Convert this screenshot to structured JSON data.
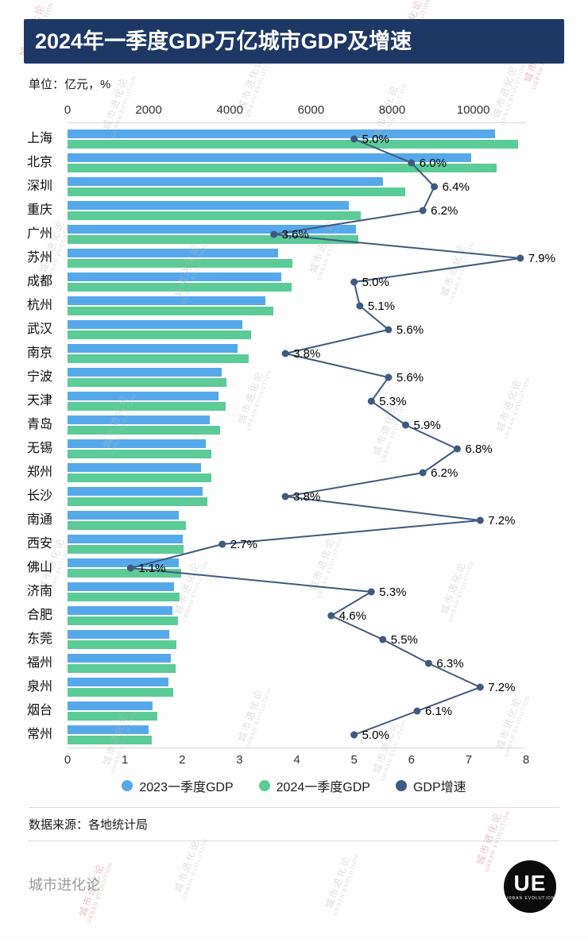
{
  "header": {
    "title": "2024年一季度GDP万亿城市GDP及增速",
    "unit": "单位：亿元，%"
  },
  "chart_data": {
    "type": "bar",
    "orientation": "horizontal",
    "title": "2024年一季度GDP万亿城市GDP及增速",
    "unit": "亿元，%",
    "grid": false,
    "legend_position": "bottom",
    "categories": [
      "上海",
      "北京",
      "深圳",
      "重庆",
      "广州",
      "苏州",
      "成都",
      "杭州",
      "武汉",
      "南京",
      "宁波",
      "天津",
      "青岛",
      "无锡",
      "郑州",
      "长沙",
      "南通",
      "西安",
      "佛山",
      "济南",
      "合肥",
      "东莞",
      "福州",
      "泉州",
      "烟台",
      "常州"
    ],
    "series": [
      {
        "name": "2023一季度GDP",
        "color": "#55a9ea",
        "values": [
          10536,
          9948,
          7772,
          6933,
          7101,
          5187,
          5267,
          4874,
          4318,
          4184,
          3802,
          3715,
          3504,
          3401,
          3284,
          3321,
          2733,
          2834,
          2745,
          2620,
          2590,
          2514,
          2550,
          2490,
          2087,
          2000
        ]
      },
      {
        "name": "2024一季度GDP",
        "color": "#5bcb97",
        "values": [
          11099,
          10581,
          8315,
          7232,
          7161,
          5549,
          5518,
          5063,
          4533,
          4457,
          3908,
          3896,
          3769,
          3553,
          3538,
          3448,
          2920,
          2865,
          2792,
          2758,
          2727,
          2675,
          2656,
          2597,
          2214,
          2080
        ]
      }
    ],
    "line_series": {
      "name": "GDP增速",
      "color": "#3f5a82",
      "values": [
        5.0,
        6.0,
        6.4,
        6.2,
        3.6,
        7.9,
        5.0,
        5.1,
        5.6,
        3.8,
        5.6,
        5.3,
        5.9,
        6.8,
        6.2,
        3.8,
        7.2,
        2.7,
        1.1,
        5.3,
        4.6,
        5.5,
        6.3,
        7.2,
        6.1,
        5.0
      ],
      "labels": [
        "5.0%",
        "6.0%",
        "6.4%",
        "6.2%",
        "3.6%",
        "7.9%",
        "5.0%",
        "5.1%",
        "5.6%",
        "3.8%",
        "5.6%",
        "5.3%",
        "5.9%",
        "6.8%",
        "6.2%",
        "3.8%",
        "7.2%",
        "2.7%",
        "1.1%",
        "5.3%",
        "4.6%",
        "5.5%",
        "6.3%",
        "7.2%",
        "6.1%",
        "5.0%"
      ]
    },
    "gdp_axis": {
      "position": "top",
      "ticks": [
        "0",
        "2000",
        "4000",
        "6000",
        "8000",
        "10000"
      ],
      "tick_values": [
        0,
        2000,
        4000,
        6000,
        8000,
        10000
      ],
      "max": 11300
    },
    "growth_axis": {
      "position": "bottom",
      "ticks": [
        "0",
        "1",
        "2",
        "3",
        "4",
        "5",
        "6",
        "7",
        "8"
      ],
      "tick_values": [
        0,
        1,
        2,
        3,
        4,
        5,
        6,
        7,
        8
      ],
      "max": 8
    },
    "legend": [
      {
        "label": "2023一季度GDP",
        "color": "#55a9ea"
      },
      {
        "label": "2024一季度GDP",
        "color": "#5bcb97"
      },
      {
        "label": "GDP增速",
        "color": "#3f5a82"
      }
    ]
  },
  "footer": {
    "source": "数据来源：各地统计局",
    "brand": "城市进化论",
    "logo_text": "UE",
    "logo_caption": "URBAN EVOLUTION"
  },
  "watermark": {
    "line1": "城市进化论",
    "line2": "URBAN EVOLUTION"
  },
  "colors": {
    "title_bg": "#1e3866",
    "title_text": "#ffffff",
    "bar_2023": "#55a9ea",
    "bar_2024": "#5bcb97",
    "growth_line": "#3f5a82",
    "watermark_gray": "#bcbcbc",
    "watermark_red": "#d98f8f"
  }
}
